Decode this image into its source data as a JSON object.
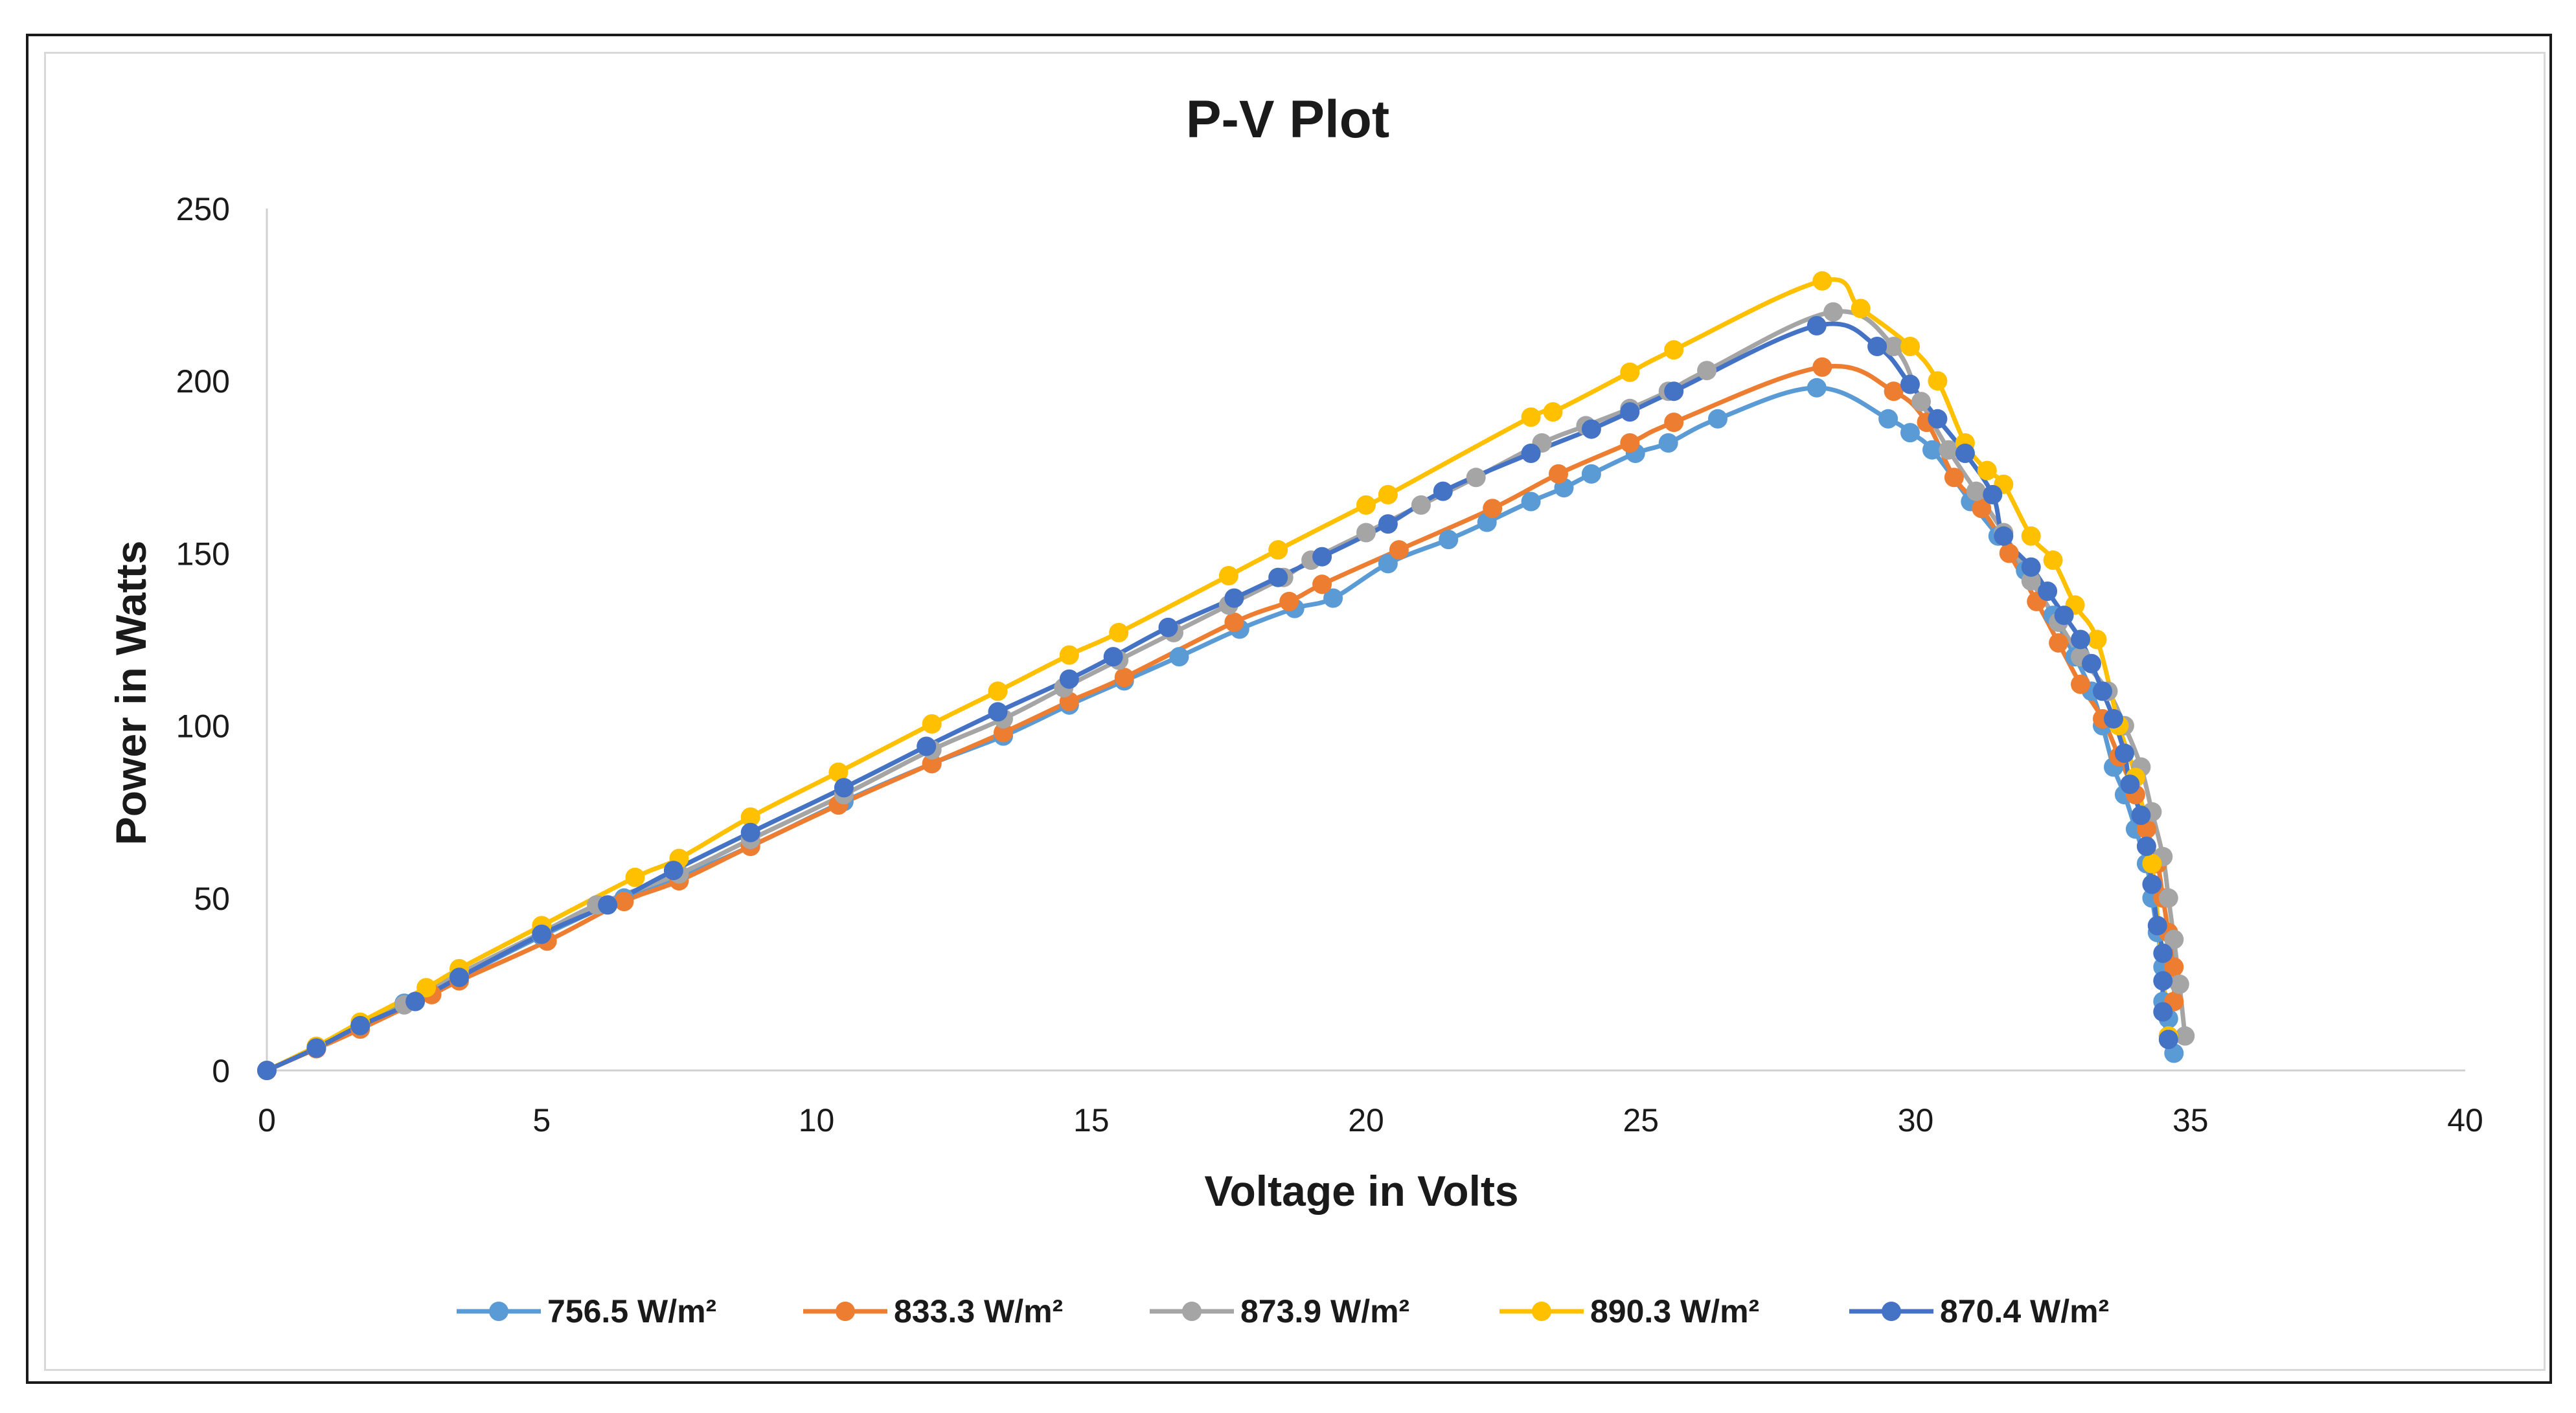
{
  "chart_data": {
    "type": "scatter",
    "title": "P-V Plot",
    "xlabel": "Voltage in Volts",
    "ylabel": "Power in Watts",
    "xlim": [
      0,
      40
    ],
    "ylim": [
      0,
      250
    ],
    "xticks": [
      "0",
      "5",
      "10",
      "15",
      "20",
      "25",
      "30",
      "35",
      "40"
    ],
    "yticks": [
      "0",
      "50",
      "100",
      "150",
      "200",
      "250"
    ],
    "grid": false,
    "legend_position": "bottom",
    "series": [
      {
        "name": "756.5 W/m²",
        "color": "#5B9BD5",
        "x": [
          0,
          0.9,
          1.7,
          2.5,
          3.5,
          5.0,
          6.5,
          7.5,
          8.8,
          10.5,
          12.1,
          13.4,
          14.6,
          15.6,
          16.6,
          17.7,
          18.7,
          19.4,
          20.4,
          21.5,
          22.2,
          23.0,
          23.6,
          24.1,
          24.9,
          25.5,
          26.4,
          28.2,
          29.5,
          29.9,
          30.3,
          31.0,
          31.5,
          32.0,
          32.5,
          32.9,
          33.2,
          33.4,
          33.6,
          33.8,
          34.0,
          34.2,
          34.3,
          34.4,
          34.5,
          34.5,
          34.6,
          34.6,
          34.7
        ],
        "y": [
          0,
          6.5,
          12.5,
          19.5,
          27,
          39,
          50,
          56,
          65,
          78,
          89,
          97,
          106,
          113,
          120,
          128,
          134,
          137,
          147,
          154,
          159,
          165,
          169,
          173,
          179,
          182,
          189,
          198,
          189,
          185,
          180,
          165,
          155,
          145,
          132,
          120,
          110,
          100,
          88,
          80,
          70,
          60,
          50,
          40,
          30,
          20,
          15,
          10,
          5
        ]
      },
      {
        "name": "833.3 W/m²",
        "color": "#ED7D31",
        "x": [
          0,
          0.9,
          1.7,
          3.0,
          3.5,
          5.1,
          6.5,
          7.5,
          8.8,
          10.4,
          12.1,
          13.4,
          14.6,
          15.6,
          17.6,
          18.6,
          19.2,
          20.6,
          22.3,
          23.5,
          24.8,
          25.6,
          28.3,
          29.6,
          30.2,
          30.7,
          31.2,
          31.7,
          32.2,
          32.6,
          33.0,
          33.4,
          33.7,
          34.0,
          34.2,
          34.4,
          34.5,
          34.6,
          34.7,
          34.7
        ],
        "y": [
          0,
          6.3,
          12,
          22,
          26,
          37.5,
          49,
          55,
          65,
          77,
          89,
          98,
          107,
          114,
          130,
          136,
          141,
          151,
          163,
          173,
          182,
          188,
          204,
          197,
          188,
          172,
          163,
          150,
          136,
          124,
          112,
          102,
          91,
          80,
          70,
          60,
          50,
          40,
          30,
          20
        ]
      },
      {
        "name": "873.9 W/m²",
        "color": "#A5A5A5",
        "x": [
          0,
          0.9,
          1.7,
          2.5,
          3.5,
          5.0,
          6.0,
          7.5,
          8.8,
          10.5,
          12.1,
          13.4,
          14.5,
          15.5,
          16.5,
          17.5,
          18.5,
          19.0,
          20.0,
          21.0,
          22.0,
          23.2,
          24.0,
          24.8,
          25.5,
          26.2,
          28.5,
          29.6,
          30.1,
          30.6,
          31.1,
          31.6,
          32.1,
          32.6,
          33.0,
          33.5,
          33.8,
          34.1,
          34.3,
          34.5,
          34.6,
          34.7,
          34.8,
          34.9
        ],
        "y": [
          0,
          6.6,
          13,
          19,
          28,
          40,
          48,
          57,
          67,
          80,
          93,
          102,
          111,
          119,
          127,
          135,
          143,
          148,
          156,
          164,
          172,
          182,
          187,
          192,
          197,
          203,
          220,
          210,
          194,
          180,
          168,
          156,
          142,
          130,
          120,
          110,
          100,
          88,
          75,
          62,
          50,
          38,
          25,
          10
        ]
      },
      {
        "name": "890.3 W/m²",
        "color": "#FFC000",
        "x": [
          0,
          0.9,
          1.7,
          2.9,
          3.5,
          5.0,
          6.7,
          7.5,
          8.8,
          10.4,
          12.1,
          13.3,
          14.6,
          15.5,
          17.5,
          18.4,
          20.0,
          20.4,
          23.0,
          23.4,
          24.8,
          25.6,
          28.3,
          29.0,
          29.9,
          30.4,
          30.9,
          31.3,
          31.6,
          32.1,
          32.5,
          32.9,
          33.3,
          33.7,
          34.0,
          34.3,
          34.6
        ],
        "y": [
          0,
          7,
          14,
          24,
          29.5,
          42,
          56,
          61.5,
          73.5,
          86.5,
          100.5,
          110,
          120.5,
          127,
          143.5,
          151,
          164,
          167,
          189.5,
          191,
          202.5,
          209,
          229,
          221,
          210,
          200,
          182,
          174,
          170,
          155,
          148,
          135,
          125,
          100,
          85,
          60,
          10
        ]
      },
      {
        "name": "870.4 W/m²",
        "color": "#4472C4",
        "x": [
          0,
          0.9,
          1.7,
          2.7,
          3.5,
          5.0,
          6.2,
          7.4,
          8.8,
          10.5,
          12.0,
          13.3,
          14.6,
          15.4,
          16.4,
          17.6,
          18.4,
          19.2,
          20.4,
          21.4,
          23.0,
          24.1,
          24.8,
          25.6,
          28.2,
          29.3,
          29.9,
          30.4,
          30.9,
          31.4,
          31.6,
          32.1,
          32.4,
          32.7,
          33.0,
          33.2,
          33.4,
          33.6,
          33.8,
          33.9,
          34.1,
          34.2,
          34.3,
          34.4,
          34.5,
          34.5,
          34.5,
          34.6
        ],
        "y": [
          0,
          6.5,
          13,
          20,
          27,
          39.5,
          48,
          58,
          69,
          82,
          94,
          104,
          113.5,
          120,
          128.5,
          137,
          143,
          149,
          158.5,
          168,
          179,
          186,
          191,
          197,
          216,
          210,
          199,
          189,
          179,
          167,
          155,
          146,
          139,
          132,
          125,
          118,
          110,
          102,
          92,
          83,
          74,
          65,
          54,
          42,
          34,
          26,
          17,
          9
        ]
      }
    ]
  }
}
